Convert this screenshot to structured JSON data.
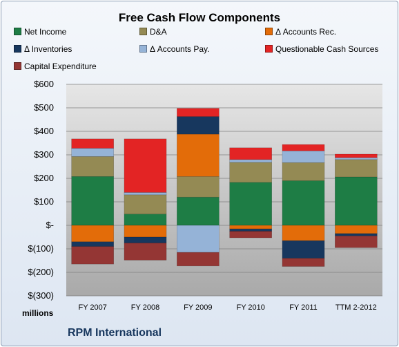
{
  "chart_data": {
    "type": "bar",
    "stacked": true,
    "title": "Free Cash Flow Components",
    "units_label": "millions",
    "company": "RPM International",
    "categories": [
      "FY 2007",
      "FY 2008",
      "FY 2009",
      "FY 2010",
      "FY 2011",
      "TTM 2-2012"
    ],
    "y_ticks": [
      "$600",
      "$500",
      "$400",
      "$300",
      "$200",
      "$100",
      "$-",
      "$(100)",
      "$(200)",
      "$(300)"
    ],
    "ylim": [
      -300,
      600
    ],
    "grid": true,
    "legend_position": "top",
    "series": [
      {
        "name": "Net Income",
        "color": "#1e7d45",
        "values": [
          208,
          48,
          120,
          183,
          190,
          206
        ]
      },
      {
        "name": "D&A",
        "color": "#948a54",
        "values": [
          85,
          82,
          88,
          85,
          77,
          74
        ]
      },
      {
        "name": "Δ Accounts Rec.",
        "color": "#e36c09",
        "values": [
          -70,
          -50,
          180,
          -15,
          -65,
          -35
        ]
      },
      {
        "name": "Δ Inventories",
        "color": "#17375e",
        "values": [
          -20,
          -25,
          75,
          -10,
          -75,
          -10
        ]
      },
      {
        "name": "Δ Accounts Pay.",
        "color": "#95b3d7",
        "values": [
          35,
          10,
          -115,
          12,
          50,
          8
        ]
      },
      {
        "name": "Questionable Cash Sources",
        "color": "#e32424",
        "values": [
          40,
          228,
          35,
          50,
          27,
          15
        ]
      },
      {
        "name": "Capital Expenditure",
        "color": "#943634",
        "values": [
          -75,
          -73,
          -58,
          -28,
          -35,
          -50
        ]
      }
    ]
  }
}
